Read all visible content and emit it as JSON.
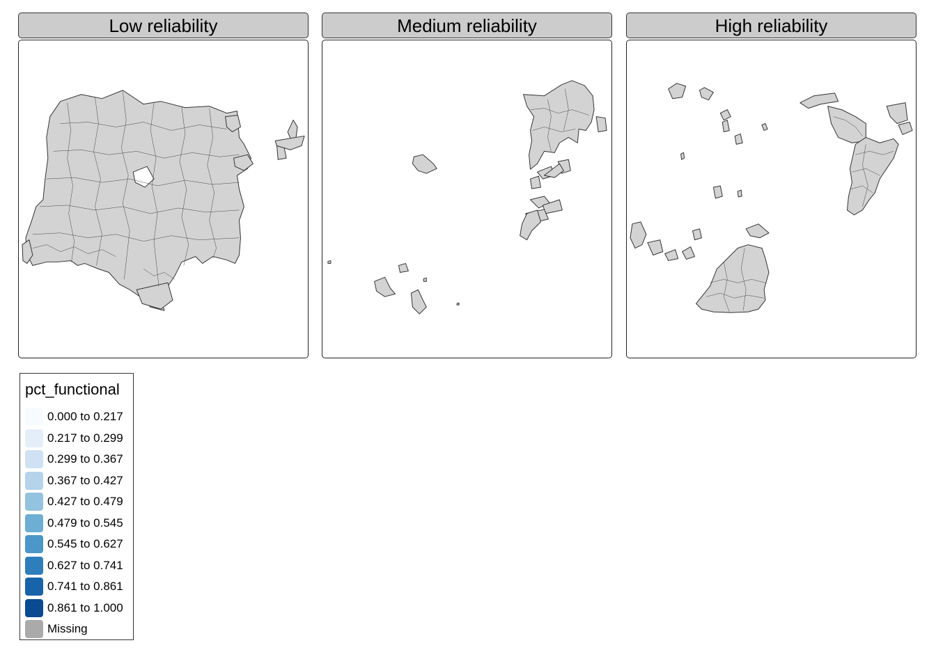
{
  "facets": [
    {
      "title": "Low reliability"
    },
    {
      "title": "Medium reliability"
    },
    {
      "title": "High reliability"
    }
  ],
  "legend": {
    "title": "pct_functional",
    "items": [
      {
        "label": "0.000 to 0.217",
        "color": "#f7fbff"
      },
      {
        "label": "0.217 to 0.299",
        "color": "#e3eef9"
      },
      {
        "label": "0.299 to 0.367",
        "color": "#cfe1f2"
      },
      {
        "label": "0.367 to 0.427",
        "color": "#b5d4e9"
      },
      {
        "label": "0.427 to 0.479",
        "color": "#93c3df"
      },
      {
        "label": "0.479 to 0.545",
        "color": "#6daed5"
      },
      {
        "label": "0.545 to 0.627",
        "color": "#4b97c9"
      },
      {
        "label": "0.627 to 0.741",
        "color": "#2f7ebc"
      },
      {
        "label": "0.741 to 0.861",
        "color": "#1864aa"
      },
      {
        "label": "0.861 to 1.000",
        "color": "#0a4a90"
      },
      {
        "label": "Missing",
        "color": "#aaaaaa"
      }
    ]
  }
}
